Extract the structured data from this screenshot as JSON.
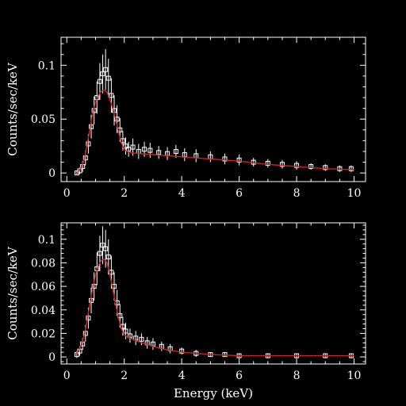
{
  "colors": {
    "background": "#000000",
    "axes": "#ffffff",
    "data_points": "#ffffff",
    "model_line": "#cc2222"
  },
  "chart_data": [
    {
      "type": "scatter",
      "title": "",
      "xlabel": "",
      "ylabel": "Counts/sec/keV",
      "xlim": [
        -0.2,
        10.4
      ],
      "ylim": [
        -0.008,
        0.126
      ],
      "xticks": [
        0,
        2,
        4,
        6,
        8,
        10
      ],
      "xtick_labels": [
        "0",
        "2",
        "4",
        "6",
        "8",
        "10"
      ],
      "yticks": [
        0,
        0.05,
        0.1
      ],
      "ytick_labels": [
        "0",
        "0.05",
        "0.1"
      ],
      "grid": false,
      "model_curve": {
        "x": [
          0.3,
          0.4,
          0.5,
          0.6,
          0.7,
          0.8,
          0.9,
          1.0,
          1.1,
          1.2,
          1.3,
          1.4,
          1.5,
          1.6,
          1.7,
          1.8,
          1.9,
          2.0,
          2.1,
          2.2,
          2.5,
          3.0,
          3.5,
          4.0,
          5.0,
          6.0,
          7.0,
          8.0,
          9.0,
          10.0
        ],
        "y": [
          0.0,
          0.001,
          0.005,
          0.012,
          0.025,
          0.04,
          0.055,
          0.066,
          0.072,
          0.076,
          0.077,
          0.075,
          0.068,
          0.06,
          0.05,
          0.038,
          0.028,
          0.022,
          0.02,
          0.019,
          0.018,
          0.017,
          0.016,
          0.015,
          0.013,
          0.011,
          0.008,
          0.006,
          0.004,
          0.003
        ]
      },
      "observed": {
        "x": [
          0.35,
          0.45,
          0.55,
          0.65,
          0.75,
          0.85,
          0.95,
          1.05,
          1.15,
          1.25,
          1.35,
          1.45,
          1.55,
          1.65,
          1.75,
          1.85,
          1.95,
          2.05,
          2.15,
          2.3,
          2.5,
          2.7,
          2.9,
          3.2,
          3.5,
          3.8,
          4.1,
          4.5,
          5.0,
          5.5,
          6.0,
          6.5,
          7.0,
          7.5,
          8.0,
          8.5,
          9.0,
          9.5,
          9.9
        ],
        "y": [
          0.0,
          0.002,
          0.006,
          0.014,
          0.027,
          0.043,
          0.058,
          0.07,
          0.085,
          0.092,
          0.096,
          0.088,
          0.072,
          0.058,
          0.05,
          0.04,
          0.03,
          0.025,
          0.022,
          0.024,
          0.02,
          0.022,
          0.021,
          0.019,
          0.018,
          0.02,
          0.017,
          0.016,
          0.015,
          0.013,
          0.012,
          0.01,
          0.009,
          0.008,
          0.007,
          0.006,
          0.005,
          0.004,
          0.004
        ],
        "yerr": [
          0.002,
          0.003,
          0.005,
          0.007,
          0.009,
          0.011,
          0.013,
          0.015,
          0.017,
          0.018,
          0.019,
          0.018,
          0.016,
          0.014,
          0.013,
          0.011,
          0.009,
          0.008,
          0.007,
          0.008,
          0.007,
          0.007,
          0.007,
          0.006,
          0.006,
          0.006,
          0.006,
          0.006,
          0.005,
          0.005,
          0.005,
          0.004,
          0.004,
          0.004,
          0.004,
          0.003,
          0.003,
          0.003,
          0.003
        ]
      }
    },
    {
      "type": "scatter",
      "title": "",
      "xlabel": "Energy (keV)",
      "ylabel": "Counts/sec/keV",
      "xlim": [
        -0.2,
        10.4
      ],
      "ylim": [
        -0.006,
        0.114
      ],
      "xticks": [
        0,
        2,
        4,
        6,
        8,
        10
      ],
      "xtick_labels": [
        "0",
        "2",
        "4",
        "6",
        "8",
        "10"
      ],
      "yticks": [
        0,
        0.02,
        0.04,
        0.06,
        0.08,
        0.1
      ],
      "ytick_labels": [
        "0",
        "0.02",
        "0.04",
        "0.06",
        "0.08",
        "0.1"
      ],
      "grid": false,
      "model_curve": {
        "x": [
          0.3,
          0.4,
          0.5,
          0.6,
          0.7,
          0.8,
          0.9,
          1.0,
          1.1,
          1.2,
          1.3,
          1.4,
          1.5,
          1.6,
          1.7,
          1.8,
          1.9,
          2.0,
          2.1,
          2.2,
          2.5,
          3.0,
          3.5,
          4.0,
          4.5,
          5.0,
          6.0,
          7.0,
          8.0,
          9.0,
          10.0
        ],
        "y": [
          0.002,
          0.005,
          0.01,
          0.018,
          0.03,
          0.045,
          0.058,
          0.07,
          0.078,
          0.082,
          0.083,
          0.08,
          0.07,
          0.058,
          0.045,
          0.033,
          0.024,
          0.019,
          0.017,
          0.016,
          0.013,
          0.009,
          0.006,
          0.004,
          0.003,
          0.002,
          0.001,
          0.001,
          0.001,
          0.001,
          0.001
        ]
      },
      "observed": {
        "x": [
          0.35,
          0.45,
          0.55,
          0.65,
          0.75,
          0.85,
          0.95,
          1.05,
          1.15,
          1.25,
          1.35,
          1.45,
          1.55,
          1.65,
          1.75,
          1.85,
          1.95,
          2.05,
          2.2,
          2.4,
          2.6,
          2.8,
          3.0,
          3.3,
          3.6,
          4.0,
          4.5,
          5.0,
          5.5,
          6.0,
          7.0,
          8.0,
          9.0,
          9.9
        ],
        "y": [
          0.002,
          0.005,
          0.011,
          0.02,
          0.033,
          0.048,
          0.06,
          0.075,
          0.088,
          0.095,
          0.092,
          0.085,
          0.072,
          0.06,
          0.046,
          0.035,
          0.026,
          0.022,
          0.018,
          0.016,
          0.015,
          0.012,
          0.011,
          0.009,
          0.007,
          0.005,
          0.003,
          0.002,
          0.002,
          0.001,
          0.001,
          0.001,
          0.001,
          0.001
        ],
        "yerr": [
          0.003,
          0.004,
          0.005,
          0.007,
          0.009,
          0.011,
          0.012,
          0.014,
          0.015,
          0.016,
          0.016,
          0.015,
          0.014,
          0.012,
          0.011,
          0.01,
          0.008,
          0.007,
          0.006,
          0.006,
          0.005,
          0.005,
          0.005,
          0.004,
          0.004,
          0.003,
          0.003,
          0.002,
          0.002,
          0.002,
          0.002,
          0.002,
          0.002,
          0.002
        ]
      }
    }
  ]
}
